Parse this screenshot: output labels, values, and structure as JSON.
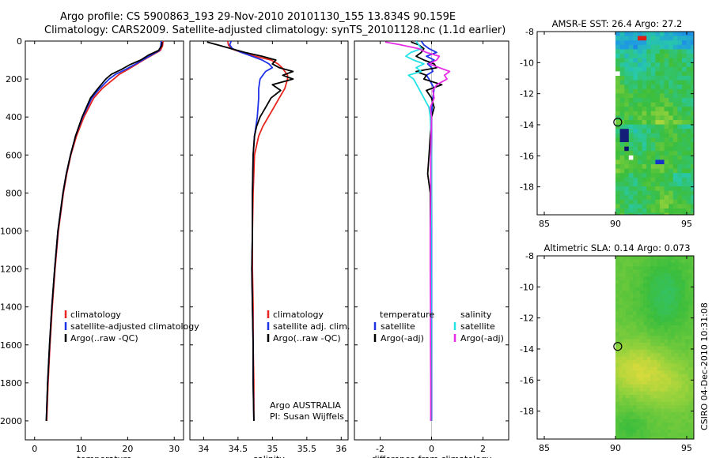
{
  "header": {
    "title_line1": "Argo profile: CS 5900863_193 29-Nov-2010 20101130_155 13.834S 90.159E",
    "title_line2": "Climatology: CARS2009. Satellite-adjusted climatology: synTS_20101128.nc (1.1d earlier)"
  },
  "colors": {
    "climatology": "#e8241e",
    "satellite": "#1e32e6",
    "argo": "#000000",
    "satellite_diff": "#24e3e6",
    "argo_adj": "#e62ae6"
  },
  "chart_data": [
    {
      "id": "temperature",
      "type": "line",
      "xlabel": "temperature",
      "ylabel": "",
      "xlim": [
        -2,
        32
      ],
      "ylim": [
        2100,
        0
      ],
      "xticks": [
        0,
        10,
        20,
        30
      ],
      "yticks": [
        0,
        200,
        400,
        600,
        800,
        1000,
        1200,
        1400,
        1600,
        1800,
        2000
      ],
      "legend": [
        "climatology",
        "satellite-adjusted climatology",
        "Argo(..raw -QC)"
      ],
      "series": [
        {
          "name": "climatology",
          "color": "#e8241e",
          "depth": [
            0,
            25,
            50,
            75,
            100,
            125,
            150,
            175,
            200,
            250,
            300,
            400,
            500,
            600,
            700,
            800,
            1000,
            1200,
            1400,
            1600,
            1800,
            2000
          ],
          "values": [
            27.6,
            27.5,
            27.0,
            25.2,
            23.4,
            21.7,
            20.0,
            18.2,
            17.0,
            14.5,
            12.7,
            10.6,
            9.0,
            7.8,
            6.9,
            6.2,
            5.1,
            4.4,
            3.8,
            3.3,
            2.9,
            2.6
          ]
        },
        {
          "name": "satellite-adjusted climatology",
          "color": "#1e32e6",
          "depth": [
            0,
            25,
            50,
            75,
            100,
            125,
            150,
            175,
            200,
            250,
            300,
            400,
            500,
            600,
            700,
            800,
            1000,
            1200,
            1400,
            1600,
            1800,
            2000
          ],
          "values": [
            27.2,
            27.1,
            26.8,
            25.0,
            23.2,
            21.4,
            19.5,
            17.4,
            16.0,
            14.0,
            12.3,
            10.3,
            8.8,
            7.7,
            6.8,
            6.1,
            5.0,
            4.3,
            3.7,
            3.2,
            2.8,
            2.5
          ]
        },
        {
          "name": "Argo(..raw -QC)",
          "color": "#000000",
          "depth": [
            5,
            25,
            50,
            75,
            100,
            125,
            150,
            175,
            200,
            250,
            300,
            400,
            500,
            600,
            700,
            800,
            1000,
            1200,
            1400,
            1600,
            1800,
            2000
          ],
          "values": [
            27.4,
            27.3,
            26.6,
            24.4,
            22.8,
            20.4,
            18.6,
            16.5,
            15.3,
            13.6,
            12.0,
            10.2,
            8.8,
            7.7,
            6.8,
            6.1,
            5.0,
            4.3,
            3.7,
            3.2,
            2.8,
            2.5
          ]
        }
      ]
    },
    {
      "id": "salinity",
      "type": "line",
      "xlabel": "salinity",
      "ylabel": "",
      "xlim": [
        33.8,
        36.1
      ],
      "ylim": [
        2100,
        0
      ],
      "xticks": [
        34,
        34.5,
        35,
        35.5,
        36
      ],
      "legend": [
        "climatology",
        "satellite adj. clim.",
        "Argo(..raw -QC)"
      ],
      "annotation": [
        "Argo AUSTRALIA",
        "PI: Susan Wijffels"
      ],
      "series": [
        {
          "name": "climatology",
          "color": "#e8241e",
          "depth": [
            0,
            20,
            40,
            60,
            80,
            100,
            120,
            140,
            160,
            180,
            200,
            250,
            300,
            350,
            400,
            450,
            500,
            600,
            800,
            1000,
            1200,
            1400,
            1600,
            1800,
            2000
          ],
          "values": [
            34.35,
            34.36,
            34.4,
            34.55,
            34.75,
            34.98,
            35.08,
            35.14,
            35.18,
            35.22,
            35.22,
            35.18,
            35.1,
            35.02,
            34.94,
            34.86,
            34.8,
            34.74,
            34.72,
            34.71,
            34.71,
            34.72,
            34.72,
            34.73,
            34.73
          ]
        },
        {
          "name": "satellite adj. clim.",
          "color": "#1e32e6",
          "depth": [
            0,
            20,
            40,
            60,
            80,
            100,
            120,
            140,
            160,
            180,
            200,
            250,
            300,
            350,
            400,
            450,
            500,
            600,
            800,
            1000,
            1200,
            1400,
            1600,
            1800,
            2000
          ],
          "values": [
            34.4,
            34.38,
            34.42,
            34.55,
            34.7,
            34.85,
            34.95,
            35.0,
            34.9,
            34.86,
            34.82,
            34.8,
            34.8,
            34.79,
            34.78,
            34.76,
            34.74,
            34.72,
            34.71,
            34.71,
            34.7,
            34.71,
            34.72,
            34.72,
            34.73
          ]
        },
        {
          "name": "Argo(..raw -QC)",
          "color": "#000000",
          "depth": [
            5,
            20,
            40,
            60,
            80,
            100,
            120,
            140,
            160,
            180,
            200,
            230,
            260,
            300,
            350,
            400,
            450,
            500,
            600,
            800,
            1000,
            1200,
            1400,
            1600,
            1800,
            2000
          ],
          "values": [
            34.05,
            34.2,
            34.4,
            34.6,
            34.85,
            35.05,
            35.0,
            35.1,
            35.3,
            35.15,
            35.3,
            35.0,
            35.12,
            34.98,
            34.9,
            34.82,
            34.77,
            34.74,
            34.72,
            34.71,
            34.71,
            34.7,
            34.71,
            34.72,
            34.72,
            34.73
          ]
        }
      ]
    },
    {
      "id": "difference",
      "type": "line",
      "xlabel": "difference from climatology",
      "ylabel": "",
      "xlim": [
        -3.0,
        3.0
      ],
      "ylim": [
        2100,
        0
      ],
      "xticks": [
        -2,
        0,
        2
      ],
      "legend_left_title": "temperature",
      "legend_left": [
        "satellite",
        "Argo(-adj)"
      ],
      "legend_right_title": "salinity",
      "legend_right": [
        "satellite",
        "Argo(-adj)"
      ],
      "series": [
        {
          "name": "temperature satellite",
          "color": "#1e32e6",
          "depth": [
            0,
            20,
            40,
            60,
            80,
            100,
            120,
            140,
            160,
            180,
            200,
            250,
            300,
            350,
            400,
            500,
            600,
            800,
            1000,
            1200,
            1400,
            1600,
            1800,
            2000
          ],
          "values": [
            -0.4,
            -0.3,
            -0.1,
            0.2,
            -0.2,
            0.1,
            -0.15,
            0.0,
            0.05,
            -0.2,
            -0.1,
            0.1,
            0.05,
            0.02,
            0.0,
            0.0,
            0.0,
            0.0,
            0.0,
            0.0,
            0.0,
            0.0,
            0.0,
            0.0
          ]
        },
        {
          "name": "temperature Argo(-adj)",
          "color": "#000000",
          "depth": [
            5,
            20,
            40,
            60,
            80,
            100,
            120,
            140,
            160,
            180,
            200,
            230,
            260,
            300,
            350,
            400,
            500,
            600,
            700,
            800,
            1000,
            1200,
            1400,
            1600,
            1800,
            2000
          ],
          "values": [
            -0.8,
            -0.5,
            -0.3,
            -0.4,
            -0.6,
            -0.3,
            0.1,
            0.2,
            -0.6,
            -0.2,
            -0.3,
            0.4,
            -0.2,
            0.0,
            0.1,
            0.0,
            -0.05,
            -0.1,
            -0.15,
            -0.05,
            -0.05,
            -0.03,
            -0.03,
            -0.02,
            -0.02,
            -0.02
          ]
        },
        {
          "name": "salinity satellite",
          "color": "#24e3e6",
          "depth": [
            0,
            20,
            40,
            60,
            80,
            100,
            120,
            140,
            160,
            180,
            200,
            250,
            300,
            350,
            400,
            500,
            600,
            800,
            1000,
            1200,
            1400,
            1600,
            1800,
            2000
          ],
          "values": [
            -0.6,
            -0.5,
            -0.4,
            -0.8,
            -1.0,
            -0.7,
            -0.3,
            -0.6,
            -0.4,
            -0.9,
            -0.7,
            -0.5,
            -0.3,
            -0.1,
            -0.05,
            -0.02,
            0.0,
            0.0,
            -0.02,
            -0.02,
            -0.02,
            -0.02,
            -0.02,
            -0.02
          ]
        },
        {
          "name": "salinity Argo(-adj)",
          "color": "#e62ae6",
          "depth": [
            5,
            20,
            40,
            60,
            80,
            100,
            120,
            140,
            160,
            180,
            200,
            230,
            260,
            300,
            350,
            400,
            500,
            600,
            800,
            1000,
            1200,
            1400,
            1600,
            1800,
            2000
          ],
          "values": [
            -1.8,
            -1.2,
            -0.5,
            -0.2,
            0.3,
            0.2,
            -0.1,
            0.3,
            0.7,
            0.5,
            0.6,
            0.2,
            0.05,
            0.1,
            -0.05,
            0.0,
            -0.02,
            -0.03,
            -0.03,
            -0.05,
            -0.05,
            -0.04,
            -0.04,
            -0.03,
            -0.03
          ]
        }
      ]
    },
    {
      "id": "amsre_sst",
      "type": "heatmap",
      "title": "AMSR-E SST: 26.4 Argo: 27.2",
      "xlim": [
        84.5,
        95.5
      ],
      "ylim": [
        -19.8,
        -8
      ],
      "xticks": [
        85,
        90,
        95
      ],
      "yticks": [
        -8,
        -10,
        -12,
        -14,
        -16,
        -18
      ],
      "data_start_lon": 90,
      "marker": {
        "lon": 90.159,
        "lat": -13.834
      }
    },
    {
      "id": "altimetric_sla",
      "type": "heatmap",
      "title": "Altimetric SLA: 0.14 Argo: 0.073",
      "xlim": [
        84.5,
        95.5
      ],
      "ylim": [
        -19.8,
        -8
      ],
      "xticks": [
        85,
        90,
        95
      ],
      "yticks": [
        -8,
        -10,
        -12,
        -14,
        -16,
        -18
      ],
      "data_start_lon": 90,
      "marker": {
        "lon": 90.159,
        "lat": -13.834
      }
    }
  ],
  "side_label": "CSIRO 04-Dec-2010 10:31:08"
}
